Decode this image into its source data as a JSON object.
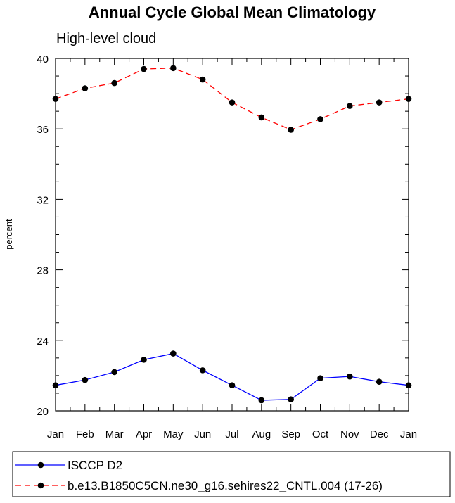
{
  "chart_data": {
    "type": "line",
    "title": "Annual Cycle Global Mean Climatology",
    "subtitle": "High-level cloud",
    "xlabel": "",
    "ylabel": "percent",
    "categories": [
      "Jan",
      "Feb",
      "Mar",
      "Apr",
      "May",
      "Jun",
      "Jul",
      "Aug",
      "Sep",
      "Oct",
      "Nov",
      "Dec",
      "Jan"
    ],
    "ylim": [
      20,
      40
    ],
    "yticks": [
      20,
      24,
      28,
      32,
      36,
      40
    ],
    "yticks_labels": [
      "20",
      "24",
      "28",
      "32",
      "36",
      "40"
    ],
    "grid": false,
    "legend_position": "bottom",
    "series": [
      {
        "name": "ISCCP D2",
        "color": "#0000ff",
        "dash": "solid",
        "values": [
          21.45,
          21.75,
          22.2,
          22.9,
          23.25,
          22.3,
          21.45,
          20.6,
          20.65,
          21.85,
          21.95,
          21.65,
          21.45
        ]
      },
      {
        "name": "b.e13.B1850C5CN.ne30_g16.sehires22_CNTL.004 (17-26)",
        "color": "#ff0000",
        "dash": "dashed",
        "values": [
          37.7,
          38.3,
          38.6,
          39.4,
          39.45,
          38.8,
          37.5,
          36.65,
          35.95,
          36.55,
          37.3,
          37.5,
          37.7
        ]
      }
    ]
  }
}
